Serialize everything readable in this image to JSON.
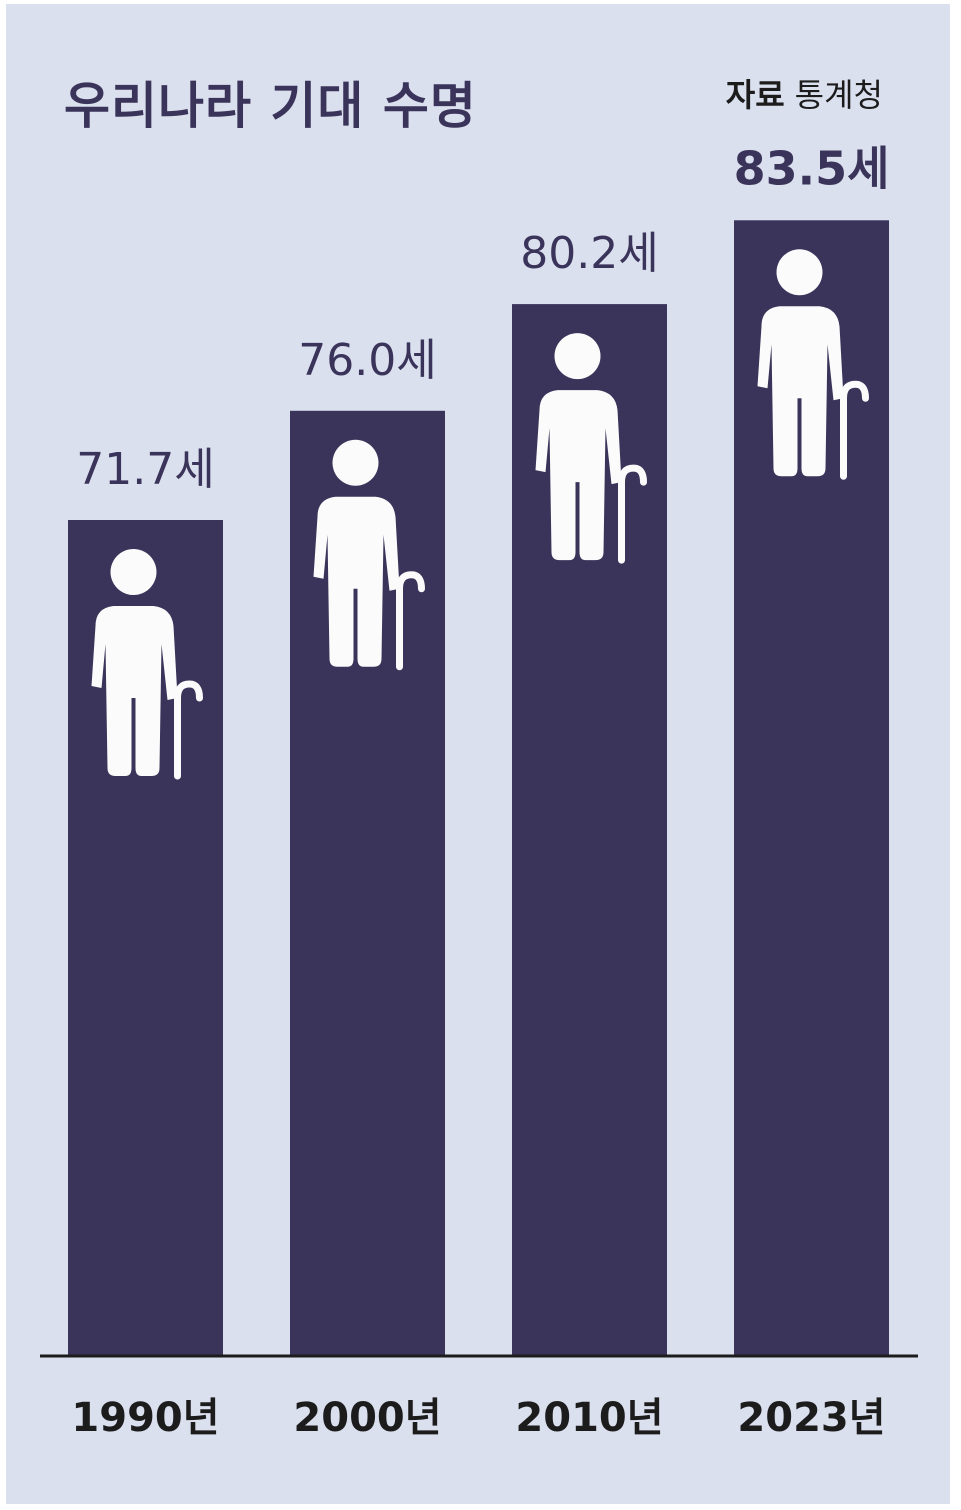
{
  "header": {
    "title": "우리나라 기대 수명",
    "source_label": "자료",
    "source_name": "통계청"
  },
  "colors": {
    "background": "#dbe0ef",
    "bar": "#3b345a",
    "icon": "#fbfbfb",
    "axis": "#1c1c1c"
  },
  "chart_data": {
    "type": "bar",
    "title": "우리나라 기대 수명",
    "categories": [
      "1990년",
      "2000년",
      "2010년",
      "2023년"
    ],
    "values": [
      71.7,
      76.0,
      80.2,
      83.5
    ],
    "value_labels": [
      "71.7세",
      "76.0세",
      "80.2세",
      "83.5세"
    ],
    "highlight_index": 3,
    "unit": "세",
    "icon": "elderly-person-with-cane-icon",
    "xlabel": "",
    "ylabel": "",
    "grid": false,
    "legend": "none"
  }
}
